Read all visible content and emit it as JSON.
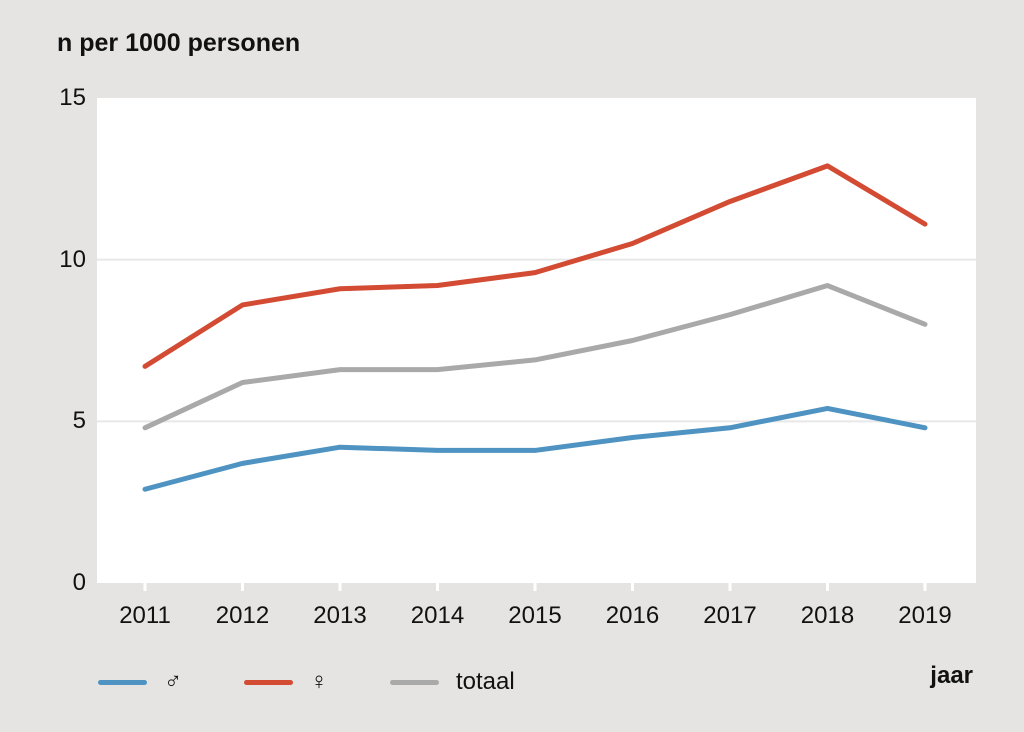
{
  "chart_data": {
    "type": "line",
    "title": "n per 1000 personen",
    "xlabel": "jaar",
    "x": [
      2011,
      2012,
      2013,
      2014,
      2015,
      2016,
      2017,
      2018,
      2019
    ],
    "series": [
      {
        "id": "male",
        "name": "♂",
        "color": "#4e93c1",
        "values": [
          2.9,
          3.7,
          4.2,
          4.1,
          4.1,
          4.5,
          4.8,
          5.4,
          4.8
        ]
      },
      {
        "id": "female",
        "name": "♀",
        "color": "#d24b32",
        "values": [
          6.7,
          8.6,
          9.1,
          9.2,
          9.6,
          10.5,
          11.8,
          12.9,
          11.1
        ]
      },
      {
        "id": "total",
        "name": "totaal",
        "color": "#a9a9a9",
        "values": [
          4.8,
          6.2,
          6.6,
          6.6,
          6.9,
          7.5,
          8.3,
          9.2,
          8.0
        ]
      }
    ],
    "ylim": [
      0,
      15
    ],
    "yticks": [
      0,
      5,
      10,
      15
    ],
    "grid_yticks": [
      5,
      10
    ],
    "legend_position": "bottom-left",
    "grid": "horizontal",
    "colors": {
      "background": "#e5e4e3",
      "plot_background": "#ffffff",
      "gridline": "#e8e8e8",
      "text": "#111111"
    }
  }
}
